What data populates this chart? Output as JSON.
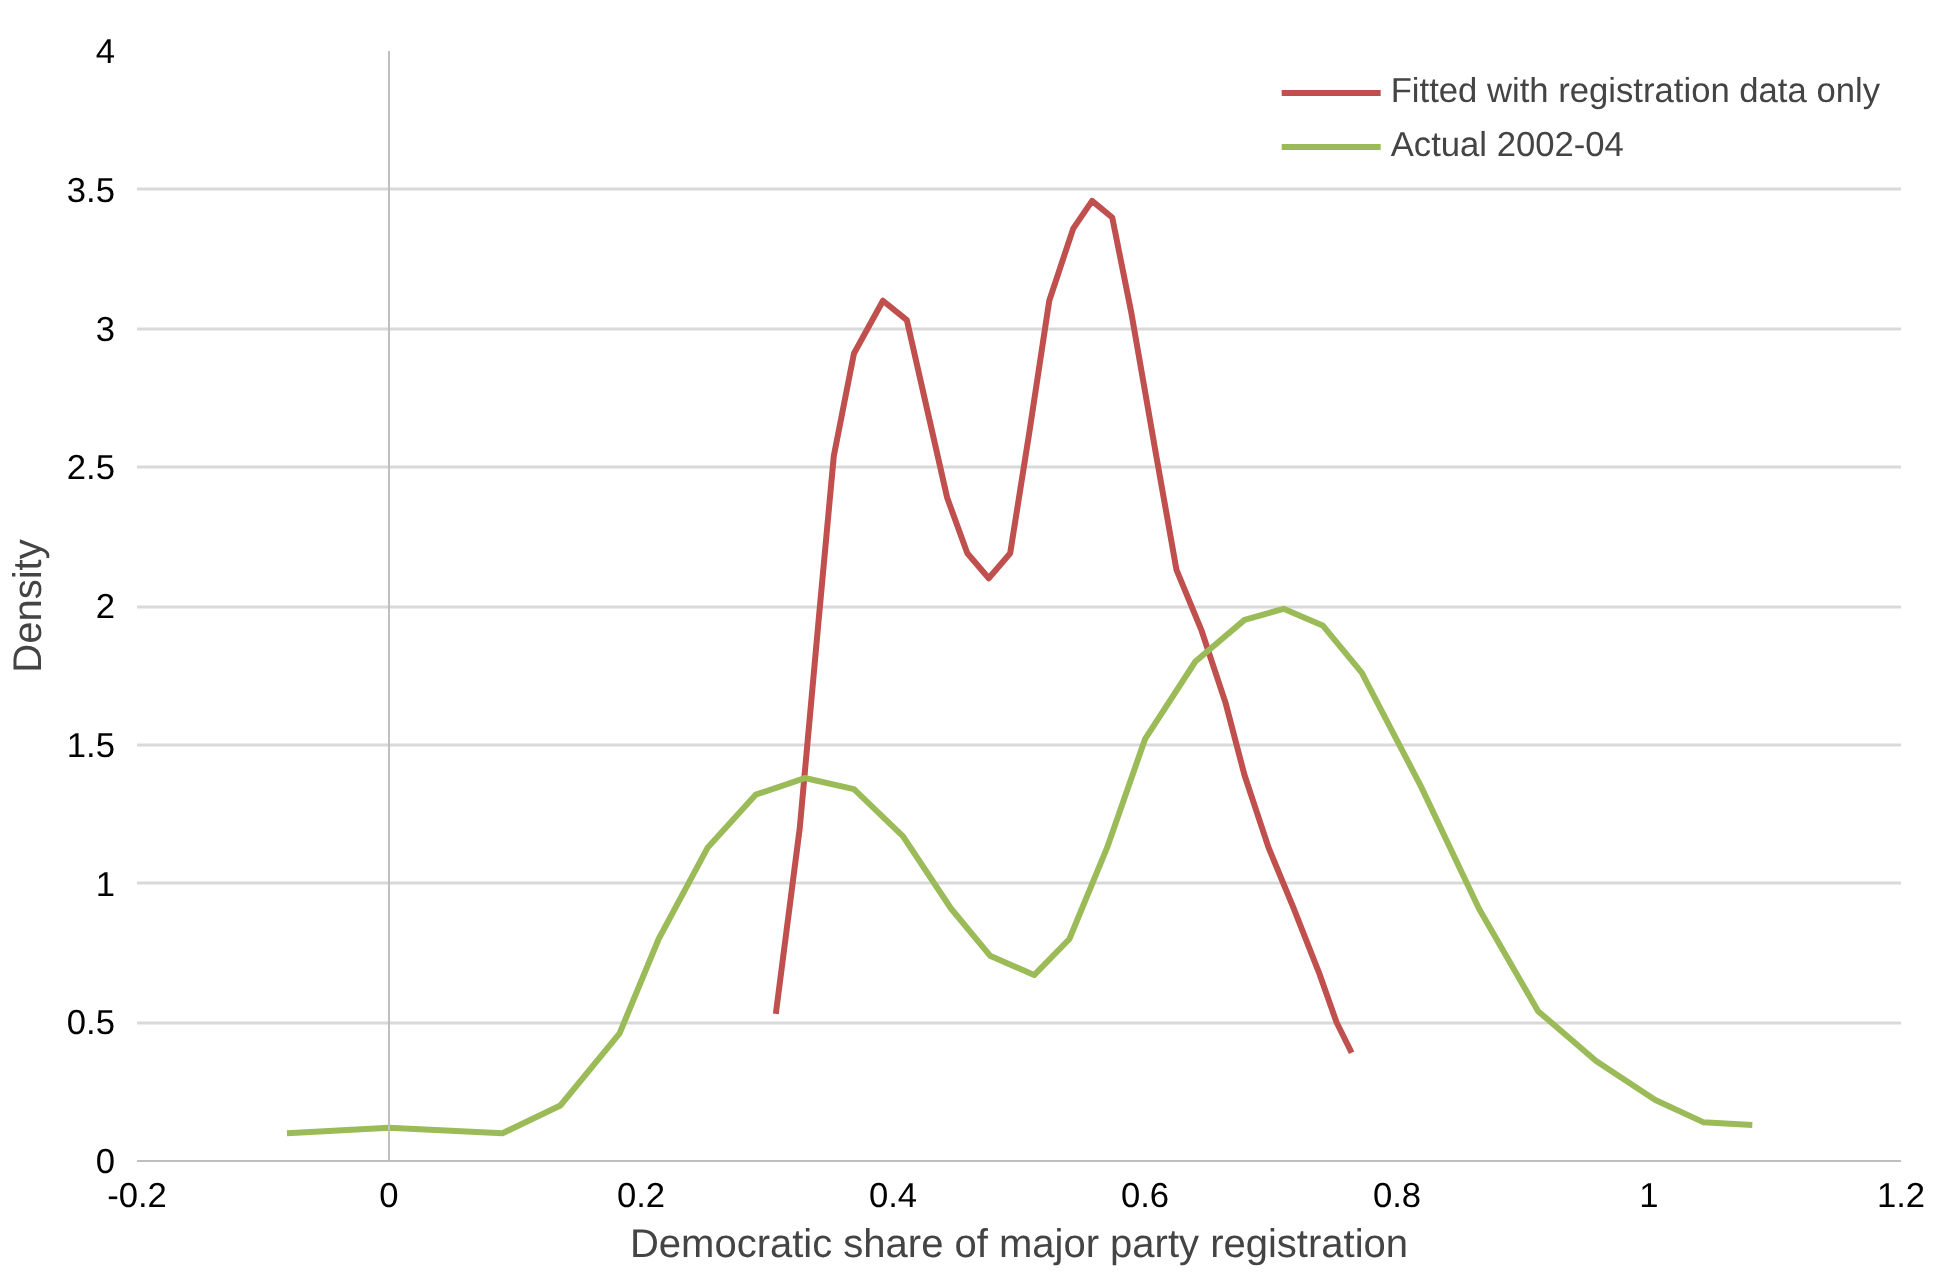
{
  "chart_data": {
    "type": "line",
    "xlabel": "Democratic share of major party registration",
    "ylabel": "Density",
    "xlim": [
      -0.2,
      1.2
    ],
    "xticks": [
      -0.2,
      0,
      0.2,
      0.4,
      0.6,
      0.8,
      1,
      1.2
    ],
    "ylim": [
      0,
      4
    ],
    "yticks": [
      0,
      0.5,
      1,
      1.5,
      2,
      2.5,
      3,
      3.5,
      4
    ],
    "grid": "y",
    "legend": "top right",
    "marker": "none",
    "line_style": "solid",
    "series": [
      {
        "name": "Fitted with registration data only",
        "color": "#c0504d",
        "x": [
          0.307,
          0.326,
          0.341,
          0.353,
          0.369,
          0.392,
          0.411,
          0.428,
          0.443,
          0.459,
          0.476,
          0.493,
          0.508,
          0.524,
          0.543,
          0.558,
          0.574,
          0.589,
          0.609,
          0.625,
          0.645,
          0.664,
          0.679,
          0.698,
          0.718,
          0.738,
          0.752,
          0.764
        ],
        "values": [
          0.53,
          1.2,
          1.95,
          2.54,
          2.91,
          3.1,
          3.03,
          2.69,
          2.39,
          2.19,
          2.1,
          2.19,
          2.62,
          3.1,
          3.36,
          3.46,
          3.4,
          3.06,
          2.54,
          2.13,
          1.91,
          1.65,
          1.39,
          1.13,
          0.91,
          0.68,
          0.5,
          0.39
        ]
      },
      {
        "name": "Actual 2002-04",
        "color": "#9bbb59",
        "x": [
          -0.081,
          0,
          0.09,
          0.136,
          0.183,
          0.214,
          0.253,
          0.291,
          0.33,
          0.369,
          0.408,
          0.446,
          0.477,
          0.512,
          0.54,
          0.57,
          0.6,
          0.64,
          0.679,
          0.71,
          0.741,
          0.772,
          0.819,
          0.865,
          0.912,
          0.958,
          1.005,
          1.043,
          1.082
        ],
        "values": [
          0.1,
          0.12,
          0.1,
          0.2,
          0.46,
          0.8,
          1.13,
          1.32,
          1.38,
          1.34,
          1.17,
          0.91,
          0.74,
          0.67,
          0.8,
          1.13,
          1.52,
          1.8,
          1.95,
          1.99,
          1.93,
          1.76,
          1.35,
          0.91,
          0.54,
          0.36,
          0.22,
          0.14,
          0.13
        ]
      }
    ]
  }
}
